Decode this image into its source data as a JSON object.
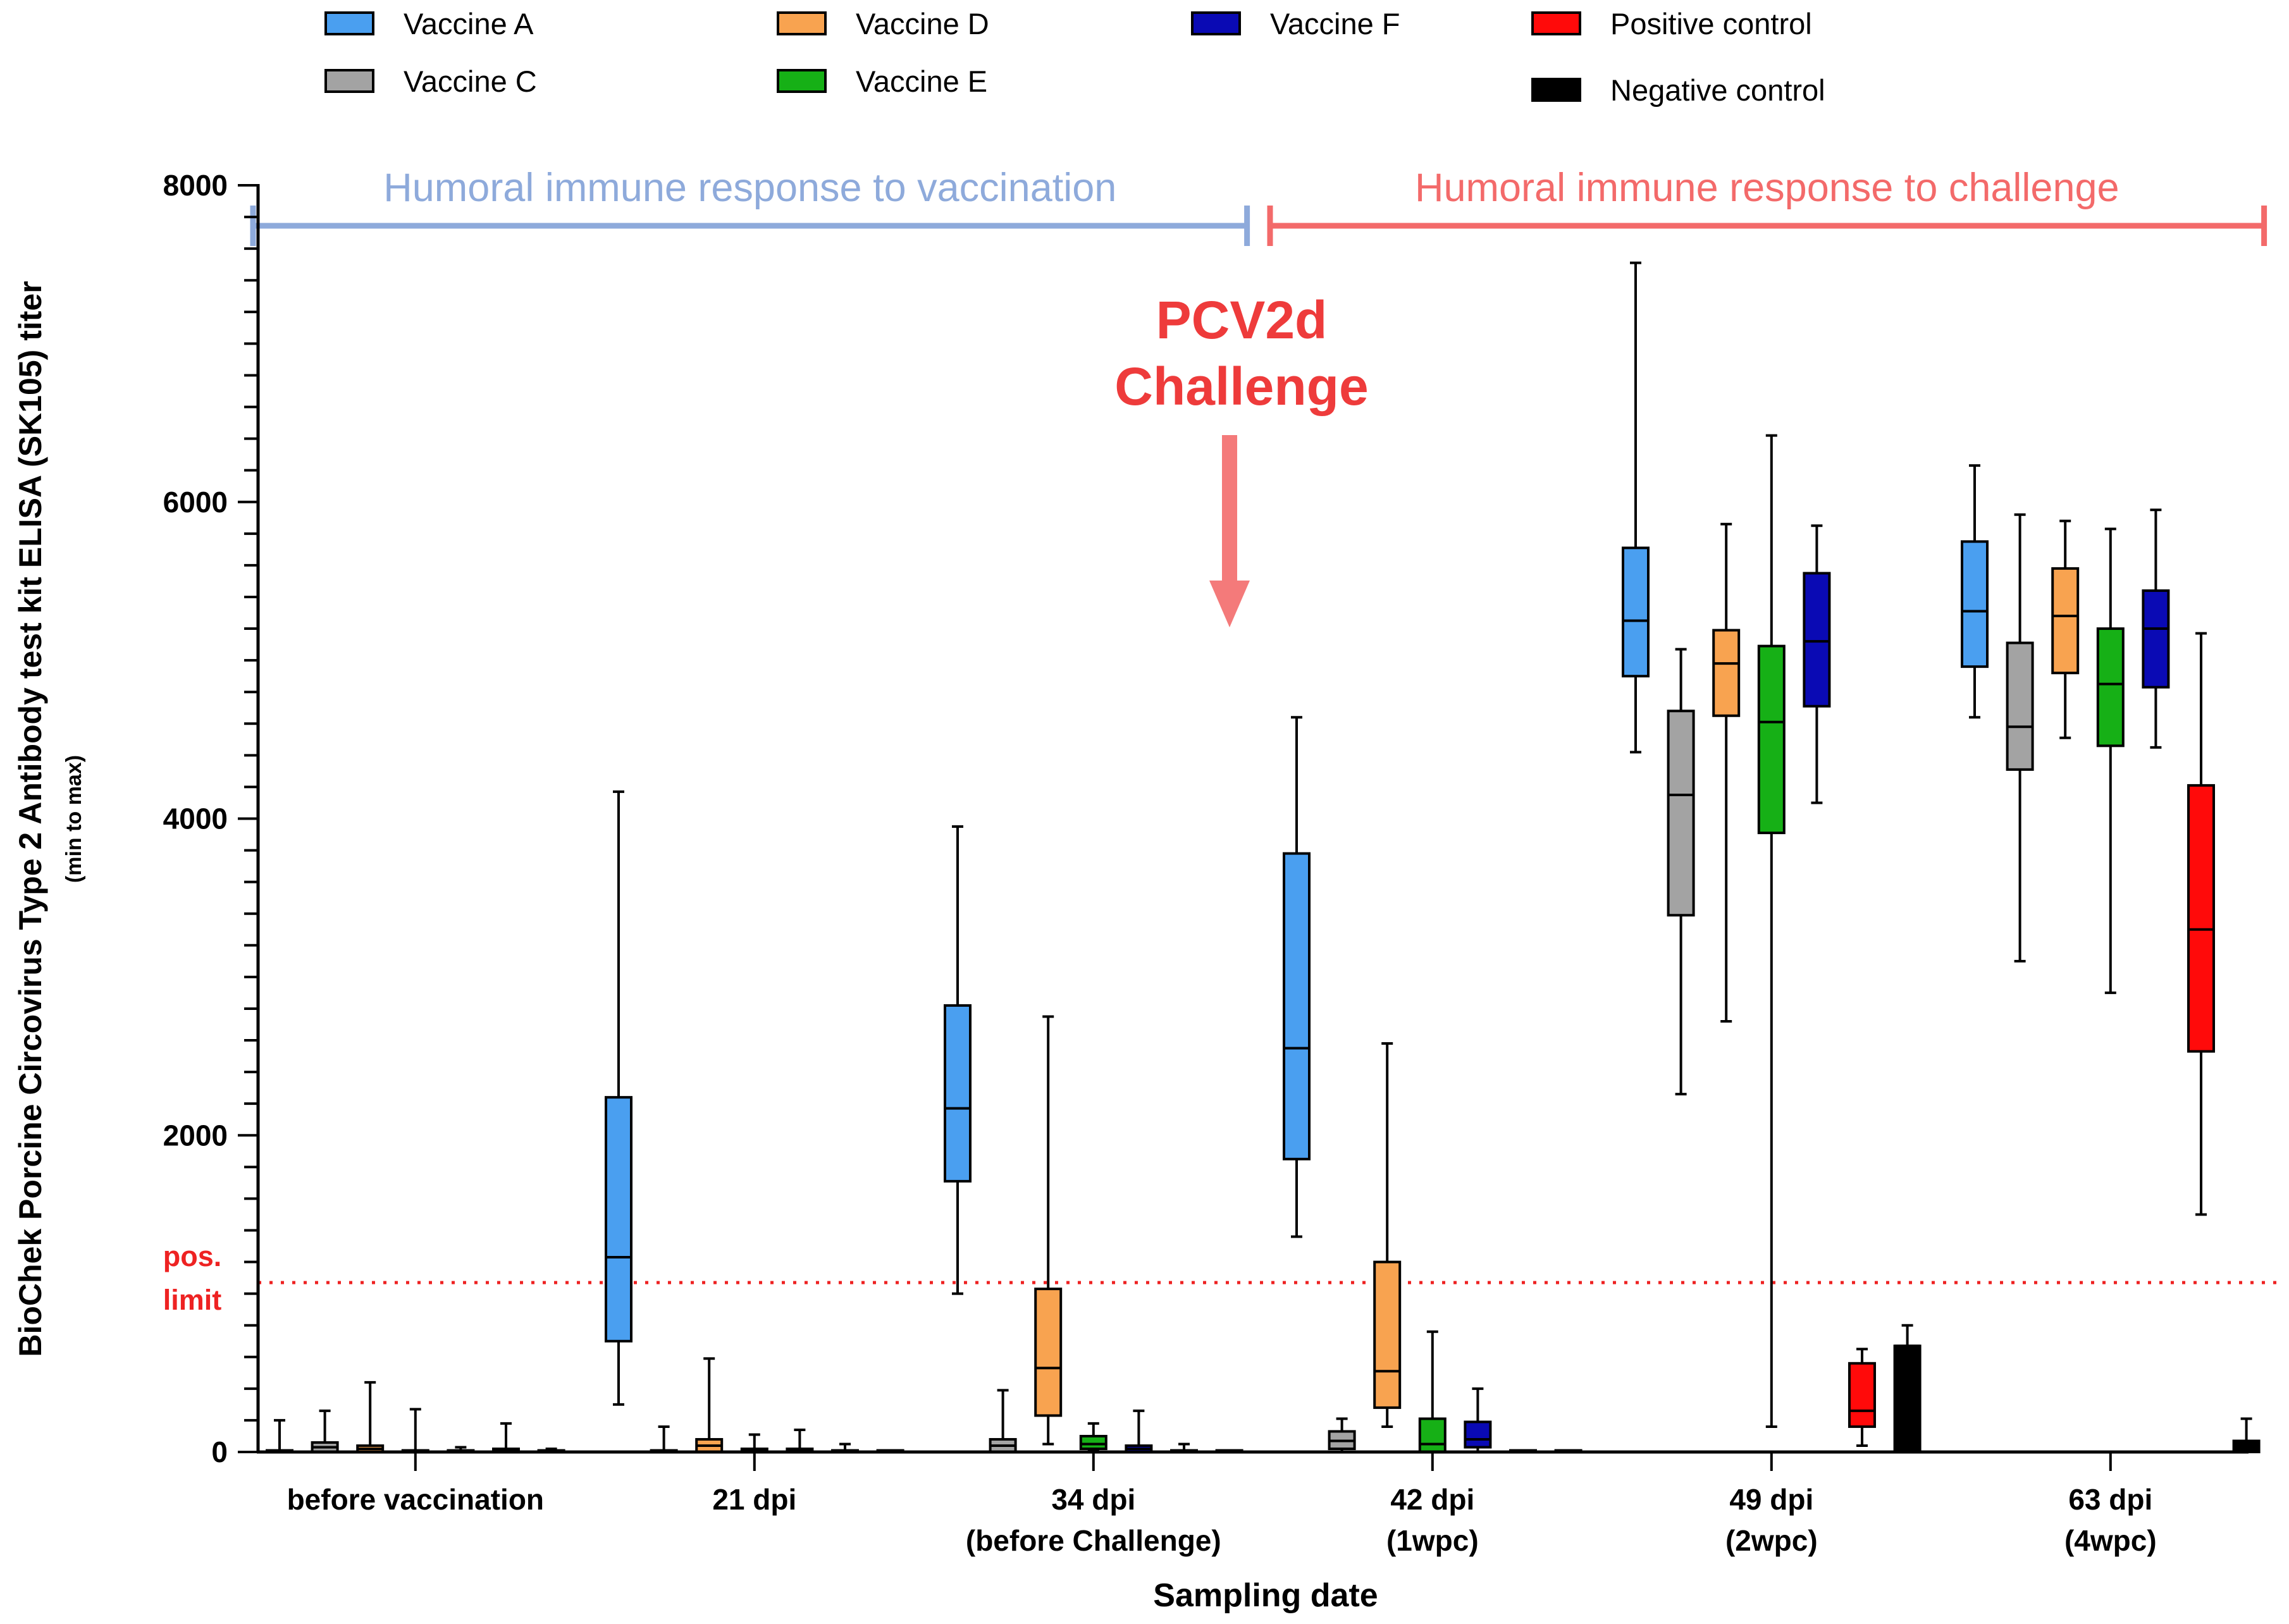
{
  "chart_data": {
    "type": "box",
    "title": "",
    "xlabel": "Sampling date",
    "ylabel": "BioChek Porcine Circovirus Type 2 Antibody test kit ELISA (SK105) titer",
    "ylabel_sub": "(min to max)",
    "ylim": [
      0,
      8000
    ],
    "yticks": [
      "0",
      "2000",
      "4000",
      "6000",
      "8000"
    ],
    "y_minor_step": 200,
    "categories": [
      {
        "line1": "before vaccination",
        "line2": ""
      },
      {
        "line1": "21 dpi",
        "line2": ""
      },
      {
        "line1": "34 dpi",
        "line2": "(before Challenge)"
      },
      {
        "line1": "42 dpi",
        "line2": "(1wpc)"
      },
      {
        "line1": "49 dpi",
        "line2": "(2wpc)"
      },
      {
        "line1": "63 dpi",
        "line2": "(4wpc)"
      }
    ],
    "pos_limit": {
      "value": 1070,
      "label_line1": "pos.",
      "label_line2": "limit",
      "color": "#ee2222"
    },
    "annotations": {
      "vaccination_bracket": {
        "text": "Humoral immune response to vaccination",
        "color": "#8eaadb",
        "from": [
          0,
          0
        ],
        "to": [
          2,
          6
        ]
      },
      "challenge_bracket": {
        "text": "Humoral immune response to challenge",
        "color": "#f36a6a",
        "from": [
          3,
          0
        ],
        "to": [
          5,
          6
        ]
      },
      "challenge_arrow": {
        "line1": "PCV2d",
        "line2": "Challenge",
        "color": "#ee3b3b",
        "arrow_color": "#f47a7a"
      }
    },
    "series": [
      {
        "name": "Vaccine A",
        "color": "#4a9ff0",
        "boxes": [
          {
            "min": 0,
            "q1": 0,
            "median": 5,
            "q3": 10,
            "max": 200
          },
          {
            "min": 300,
            "q1": 700,
            "median": 1230,
            "q3": 2240,
            "max": 4170
          },
          {
            "min": 1000,
            "q1": 1710,
            "median": 2170,
            "q3": 2820,
            "max": 3950
          },
          {
            "min": 1360,
            "q1": 1850,
            "median": 2550,
            "q3": 3780,
            "max": 4640
          },
          {
            "min": 4420,
            "q1": 4900,
            "median": 5250,
            "q3": 5710,
            "max": 7510
          },
          {
            "min": 4640,
            "q1": 4960,
            "median": 5310,
            "q3": 5750,
            "max": 6230
          }
        ]
      },
      {
        "name": "Vaccine C",
        "color": "#a3a3a3",
        "boxes": [
          {
            "min": 0,
            "q1": 0,
            "median": 30,
            "q3": 60,
            "max": 260
          },
          {
            "min": 0,
            "q1": 0,
            "median": 5,
            "q3": 10,
            "max": 160
          },
          {
            "min": 0,
            "q1": 0,
            "median": 40,
            "q3": 80,
            "max": 390
          },
          {
            "min": 0,
            "q1": 20,
            "median": 70,
            "q3": 130,
            "max": 210
          },
          {
            "min": 2260,
            "q1": 3390,
            "median": 4150,
            "q3": 4680,
            "max": 5070
          },
          {
            "min": 3100,
            "q1": 4310,
            "median": 4580,
            "q3": 5110,
            "max": 5920
          }
        ]
      },
      {
        "name": "Vaccine D",
        "color": "#f8a350",
        "boxes": [
          {
            "min": 0,
            "q1": 0,
            "median": 20,
            "q3": 40,
            "max": 440
          },
          {
            "min": 0,
            "q1": 0,
            "median": 40,
            "q3": 80,
            "max": 590
          },
          {
            "min": 50,
            "q1": 230,
            "median": 530,
            "q3": 1030,
            "max": 2750
          },
          {
            "min": 160,
            "q1": 280,
            "median": 510,
            "q3": 1200,
            "max": 2580
          },
          {
            "min": 2720,
            "q1": 4650,
            "median": 4980,
            "q3": 5190,
            "max": 5860
          },
          {
            "min": 4510,
            "q1": 4920,
            "median": 5280,
            "q3": 5580,
            "max": 5880
          }
        ]
      },
      {
        "name": "Vaccine E",
        "color": "#16b016",
        "boxes": [
          {
            "min": 0,
            "q1": 0,
            "median": 5,
            "q3": 10,
            "max": 270
          },
          {
            "min": 0,
            "q1": 0,
            "median": 10,
            "q3": 20,
            "max": 110
          },
          {
            "min": 10,
            "q1": 20,
            "median": 50,
            "q3": 100,
            "max": 180
          },
          {
            "min": 0,
            "q1": 0,
            "median": 50,
            "q3": 210,
            "max": 760
          },
          {
            "min": 160,
            "q1": 3910,
            "median": 4610,
            "q3": 5090,
            "max": 6420
          },
          {
            "min": 2900,
            "q1": 4460,
            "median": 4850,
            "q3": 5200,
            "max": 5830
          }
        ]
      },
      {
        "name": "Vaccine F",
        "color": "#0a0ab4",
        "boxes": [
          {
            "min": 0,
            "q1": 0,
            "median": 5,
            "q3": 10,
            "max": 30
          },
          {
            "min": 0,
            "q1": 0,
            "median": 10,
            "q3": 20,
            "max": 140
          },
          {
            "min": 0,
            "q1": 0,
            "median": 20,
            "q3": 40,
            "max": 260
          },
          {
            "min": 0,
            "q1": 30,
            "median": 80,
            "q3": 190,
            "max": 400
          },
          {
            "min": 4100,
            "q1": 4710,
            "median": 5120,
            "q3": 5550,
            "max": 5850
          },
          {
            "min": 4450,
            "q1": 4830,
            "median": 5200,
            "q3": 5440,
            "max": 5950
          }
        ]
      },
      {
        "name": "Positive control",
        "color": "#ff0a0a",
        "boxes": [
          {
            "min": 0,
            "q1": 0,
            "median": 10,
            "q3": 20,
            "max": 180
          },
          {
            "min": 0,
            "q1": 0,
            "median": 5,
            "q3": 10,
            "max": 50
          },
          {
            "min": 0,
            "q1": 0,
            "median": 5,
            "q3": 10,
            "max": 50
          },
          {
            "min": 0,
            "q1": 0,
            "median": 5,
            "q3": 10,
            "max": 10
          },
          {
            "min": 40,
            "q1": 160,
            "median": 260,
            "q3": 560,
            "max": 650
          },
          {
            "min": 1500,
            "q1": 2530,
            "median": 3300,
            "q3": 4210,
            "max": 5170
          }
        ]
      },
      {
        "name": "Negative control",
        "color": "#000000",
        "boxes": [
          {
            "min": 0,
            "q1": 0,
            "median": 5,
            "q3": 10,
            "max": 20
          },
          {
            "min": 0,
            "q1": 0,
            "median": 5,
            "q3": 10,
            "max": 10
          },
          {
            "min": 0,
            "q1": 0,
            "median": 5,
            "q3": 10,
            "max": 10
          },
          {
            "min": 0,
            "q1": 0,
            "median": 5,
            "q3": 10,
            "max": 10
          },
          {
            "min": 0,
            "q1": 0,
            "median": 670,
            "q3": 670,
            "max": 800
          },
          {
            "min": 0,
            "q1": 0,
            "median": 70,
            "q3": 70,
            "max": 210
          }
        ]
      }
    ]
  }
}
